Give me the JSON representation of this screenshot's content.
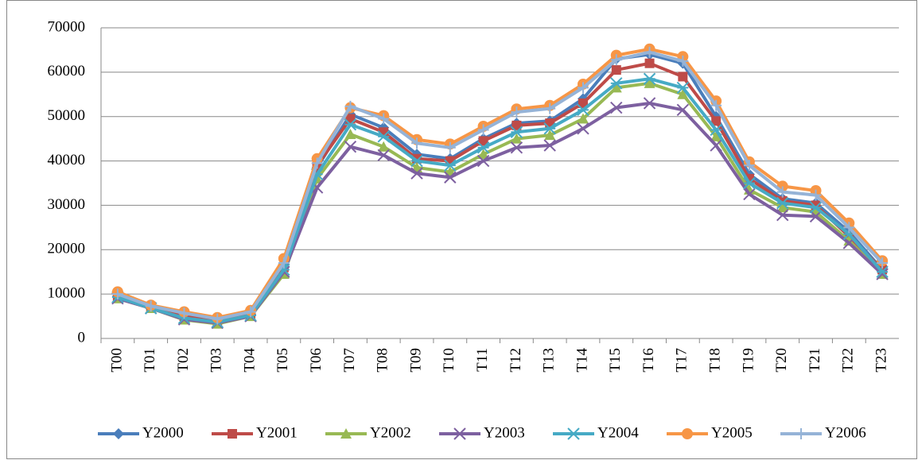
{
  "chart_data": {
    "type": "line",
    "categories": [
      "T00",
      "T01",
      "T02",
      "T03",
      "T04",
      "T05",
      "T06",
      "T07",
      "T08",
      "T09",
      "T10",
      "T11",
      "T12",
      "T13",
      "T14",
      "T15",
      "T16",
      "T17",
      "T18",
      "T19",
      "T20",
      "T21",
      "T22",
      "T23"
    ],
    "ylim": [
      0,
      70000
    ],
    "yticks": [
      0,
      10000,
      20000,
      30000,
      40000,
      50000,
      60000,
      70000
    ],
    "grid": true,
    "legend": "bottom",
    "series": [
      {
        "name": "Y2000",
        "color": "#4a7ebb",
        "marker": "diamond",
        "values": [
          9500,
          7000,
          5000,
          4000,
          5500,
          16000,
          38500,
          50500,
          47500,
          41500,
          40500,
          45000,
          48500,
          49000,
          54000,
          63000,
          64000,
          62000,
          50000,
          37000,
          31500,
          30500,
          24000,
          15500
        ]
      },
      {
        "name": "Y2001",
        "color": "#be4b48",
        "marker": "square",
        "values": [
          9200,
          7200,
          5000,
          4000,
          5500,
          16000,
          39000,
          49500,
          46500,
          40500,
          40000,
          44500,
          48000,
          48500,
          53000,
          60500,
          62000,
          59000,
          49000,
          36000,
          31000,
          30000,
          23000,
          15500
        ]
      },
      {
        "name": "Y2002",
        "color": "#98b954",
        "marker": "triangle",
        "values": [
          9000,
          6800,
          4200,
          3300,
          5000,
          14500,
          36000,
          46000,
          43200,
          38500,
          37500,
          41500,
          45000,
          45800,
          49500,
          56500,
          57500,
          55000,
          45500,
          33500,
          29500,
          28500,
          22000,
          14500
        ]
      },
      {
        "name": "Y2003",
        "color": "#7d60a0",
        "marker": "cross",
        "values": [
          9000,
          6800,
          4300,
          3500,
          5000,
          15000,
          34000,
          43200,
          41300,
          37200,
          36300,
          40000,
          43000,
          43500,
          47300,
          52000,
          53000,
          51500,
          43500,
          32500,
          27800,
          27500,
          21500,
          14500
        ]
      },
      {
        "name": "Y2004",
        "color": "#46aac5",
        "marker": "star",
        "values": [
          9300,
          6800,
          4600,
          3700,
          5200,
          15500,
          37000,
          48200,
          45500,
          40000,
          39000,
          43000,
          46500,
          47300,
          51500,
          57500,
          58500,
          56500,
          47000,
          35000,
          30500,
          29500,
          23500,
          15000
        ]
      },
      {
        "name": "Y2005",
        "color": "#f79646",
        "marker": "circle",
        "values": [
          10500,
          7500,
          6000,
          4700,
          6300,
          18000,
          40500,
          52000,
          50200,
          44800,
          43800,
          47800,
          51700,
          52500,
          57300,
          63800,
          65200,
          63500,
          53500,
          39800,
          34300,
          33300,
          26000,
          17500
        ]
      },
      {
        "name": "Y2006",
        "color": "#95b3d7",
        "marker": "plus",
        "values": [
          10000,
          7300,
          5700,
          4400,
          6000,
          17000,
          39500,
          52300,
          49500,
          44000,
          43000,
          47000,
          51000,
          51800,
          56500,
          62800,
          64500,
          62500,
          52500,
          39000,
          33000,
          32300,
          25000,
          17000
        ]
      }
    ]
  }
}
